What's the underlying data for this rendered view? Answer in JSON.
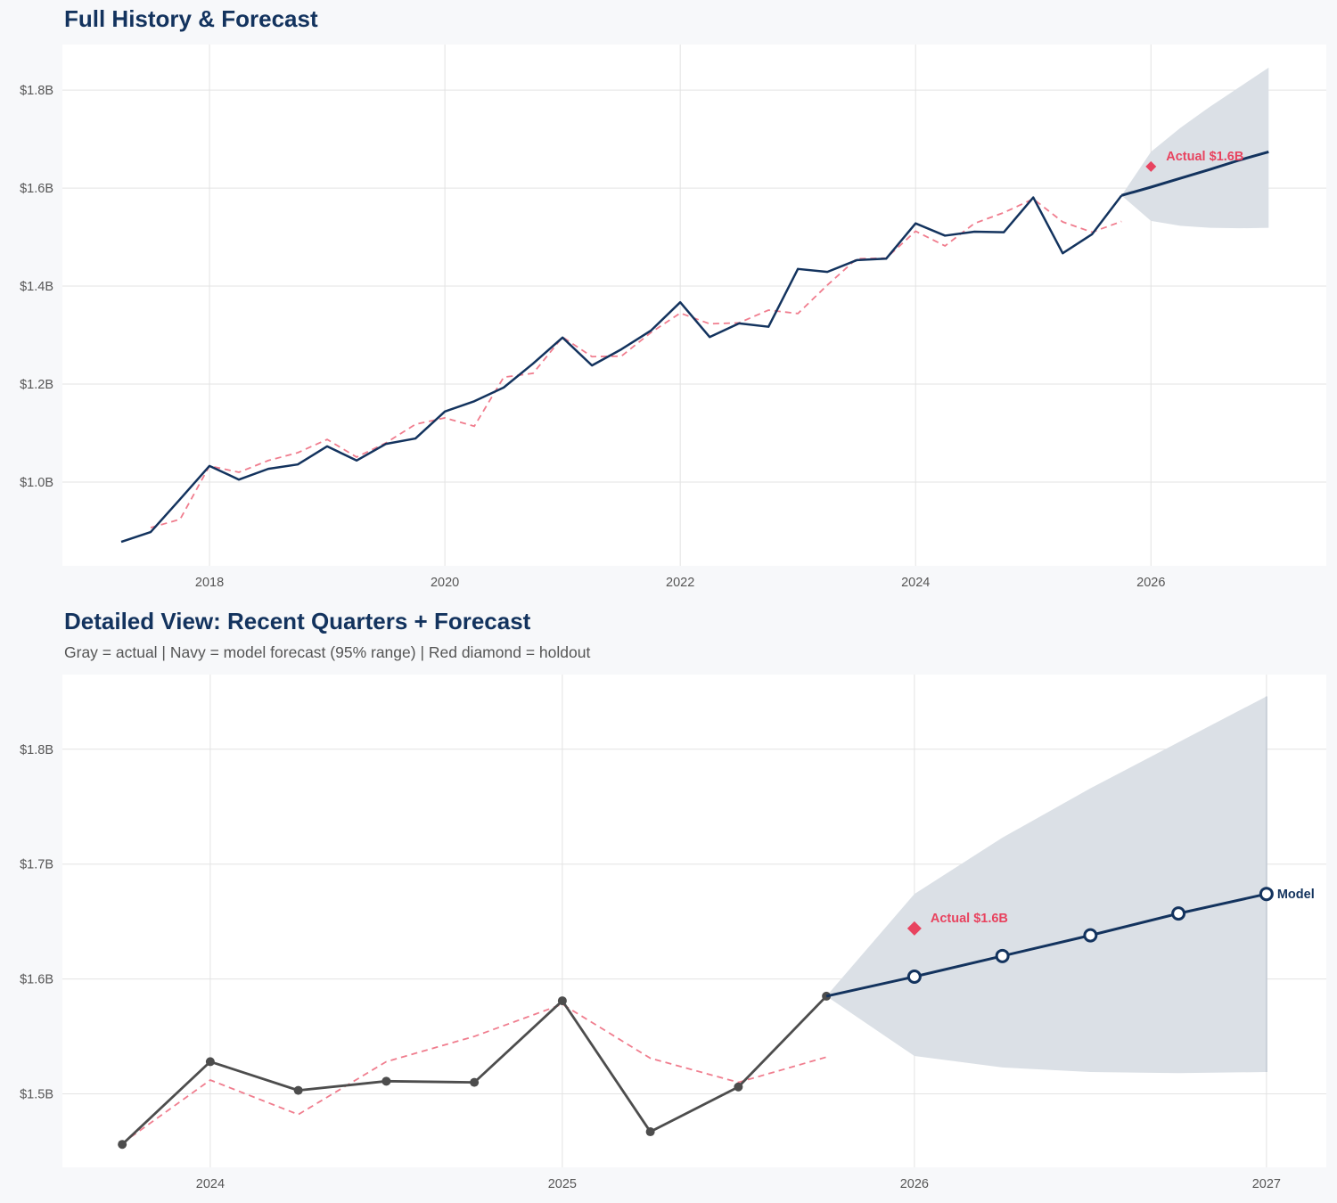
{
  "colors": {
    "navy": "#13335e",
    "actual_gray": "#4d4d4d",
    "fitted_red": "#f07d8e",
    "holdout_red": "#e8435f",
    "band": "#dbe0e6",
    "grid": "#e3e3e3"
  },
  "chart_data": [
    {
      "type": "line",
      "title": "Full History & Forecast",
      "xlim": [
        2016.75,
        2027.49
      ],
      "ylim": [
        0.829,
        1.893
      ],
      "grid": true,
      "x_ticks": [
        {
          "value": 2018,
          "label": "2018"
        },
        {
          "value": 2020,
          "label": "2020"
        },
        {
          "value": 2022,
          "label": "2022"
        },
        {
          "value": 2024,
          "label": "2024"
        },
        {
          "value": 2026,
          "label": "2026"
        }
      ],
      "y_ticks": [
        {
          "value": 1.0,
          "label": "$1.0B"
        },
        {
          "value": 1.2,
          "label": "$1.2B"
        },
        {
          "value": 1.4,
          "label": "$1.4B"
        },
        {
          "value": 1.6,
          "label": "$1.6B"
        },
        {
          "value": 1.8,
          "label": "$1.8B"
        }
      ],
      "actual": {
        "color": "#13335e",
        "markers": false,
        "x": [
          "2017-04-01",
          "2017-07-01",
          "2017-10-01",
          "2018-01-01",
          "2018-04-01",
          "2018-07-01",
          "2018-10-01",
          "2019-01-01",
          "2019-04-01",
          "2019-07-01",
          "2019-10-01",
          "2020-01-01",
          "2020-04-01",
          "2020-07-01",
          "2020-10-01",
          "2021-01-01",
          "2021-04-01",
          "2021-07-01",
          "2021-10-01",
          "2022-01-01",
          "2022-04-01",
          "2022-07-01",
          "2022-10-01",
          "2023-01-01",
          "2023-04-01",
          "2023-07-01",
          "2023-10-01",
          "2024-01-01",
          "2024-04-01",
          "2024-07-01",
          "2024-10-01",
          "2025-01-01",
          "2025-04-01",
          "2025-07-01",
          "2025-10-01"
        ],
        "y": [
          0.878,
          0.898,
          0.965,
          1.033,
          1.005,
          1.027,
          1.036,
          1.073,
          1.044,
          1.078,
          1.089,
          1.144,
          1.165,
          1.193,
          1.242,
          1.295,
          1.238,
          1.271,
          1.309,
          1.367,
          1.296,
          1.324,
          1.317,
          1.435,
          1.429,
          1.453,
          1.456,
          1.528,
          1.503,
          1.511,
          1.51,
          1.581,
          1.467,
          1.506,
          1.585
        ]
      },
      "fitted": {
        "x": [
          "2017-07-01",
          "2017-10-01",
          "2018-01-01",
          "2018-04-01",
          "2018-07-01",
          "2018-10-01",
          "2019-01-01",
          "2019-04-01",
          "2019-07-01",
          "2019-10-01",
          "2020-01-01",
          "2020-04-01",
          "2020-07-01",
          "2020-10-01",
          "2021-01-01",
          "2021-04-01",
          "2021-07-01",
          "2021-10-01",
          "2022-01-01",
          "2022-04-01",
          "2022-07-01",
          "2022-10-01",
          "2023-01-01",
          "2023-04-01",
          "2023-07-01",
          "2023-10-01",
          "2024-01-01",
          "2024-04-01",
          "2024-07-01",
          "2024-10-01",
          "2025-01-01",
          "2025-04-01",
          "2025-07-01",
          "2025-10-01"
        ],
        "y": [
          0.907,
          0.924,
          1.033,
          1.02,
          1.044,
          1.06,
          1.087,
          1.051,
          1.08,
          1.118,
          1.131,
          1.114,
          1.214,
          1.222,
          1.296,
          1.256,
          1.257,
          1.305,
          1.345,
          1.323,
          1.325,
          1.351,
          1.344,
          1.402,
          1.456,
          1.457,
          1.512,
          1.482,
          1.528,
          1.55,
          1.578,
          1.531,
          1.51,
          1.532
        ]
      },
      "forecast": {
        "markers": false,
        "x": [
          "2025-10-01",
          "2026-01-01",
          "2026-04-01",
          "2026-07-01",
          "2026-10-01",
          "2027-01-01"
        ],
        "y": [
          1.585,
          1.602,
          1.62,
          1.638,
          1.657,
          1.674
        ],
        "upper": [
          1.585,
          1.674,
          1.723,
          1.766,
          1.806,
          1.846
        ],
        "lower": [
          1.585,
          1.533,
          1.523,
          1.519,
          1.518,
          1.519
        ]
      },
      "holdout": {
        "x": "2026-01-01",
        "y": 1.644,
        "label": "Actual $1.6B"
      }
    },
    {
      "type": "line",
      "title": "Detailed View: Recent Quarters + Forecast",
      "subtitle": "Gray = actual  |  Navy = model forecast (95% range)  |  Red diamond = holdout",
      "xlim": [
        2023.58,
        2027.17
      ],
      "ylim": [
        1.436,
        1.865
      ],
      "grid": true,
      "x_ticks": [
        {
          "value": 2024,
          "label": "2024"
        },
        {
          "value": 2025,
          "label": "2025"
        },
        {
          "value": 2026,
          "label": "2026"
        },
        {
          "value": 2027,
          "label": "2027"
        }
      ],
      "y_ticks": [
        {
          "value": 1.5,
          "label": "$1.5B"
        },
        {
          "value": 1.6,
          "label": "$1.6B"
        },
        {
          "value": 1.7,
          "label": "$1.7B"
        },
        {
          "value": 1.8,
          "label": "$1.8B"
        }
      ],
      "actual": {
        "color": "#4d4d4d",
        "markers": true,
        "x": [
          "2023-10-01",
          "2024-01-01",
          "2024-04-01",
          "2024-07-01",
          "2024-10-01",
          "2025-01-01",
          "2025-04-01",
          "2025-07-01",
          "2025-10-01"
        ],
        "y": [
          1.456,
          1.528,
          1.503,
          1.511,
          1.51,
          1.581,
          1.467,
          1.506,
          1.585
        ]
      },
      "fitted": {
        "x": [
          "2023-10-01",
          "2024-01-01",
          "2024-04-01",
          "2024-07-01",
          "2024-10-01",
          "2025-01-01",
          "2025-04-01",
          "2025-07-01",
          "2025-10-01"
        ],
        "y": [
          1.457,
          1.512,
          1.482,
          1.528,
          1.55,
          1.578,
          1.531,
          1.51,
          1.532
        ]
      },
      "forecast": {
        "markers": true,
        "label": "Model",
        "x": [
          "2025-10-01",
          "2026-01-01",
          "2026-04-01",
          "2026-07-01",
          "2026-10-01",
          "2027-01-01"
        ],
        "y": [
          1.585,
          1.602,
          1.62,
          1.638,
          1.657,
          1.674
        ],
        "upper": [
          1.585,
          1.674,
          1.723,
          1.766,
          1.806,
          1.846
        ],
        "lower": [
          1.585,
          1.533,
          1.523,
          1.519,
          1.518,
          1.519
        ]
      },
      "holdout": {
        "x": "2026-01-01",
        "y": 1.644,
        "label": "Actual $1.6B"
      }
    }
  ]
}
